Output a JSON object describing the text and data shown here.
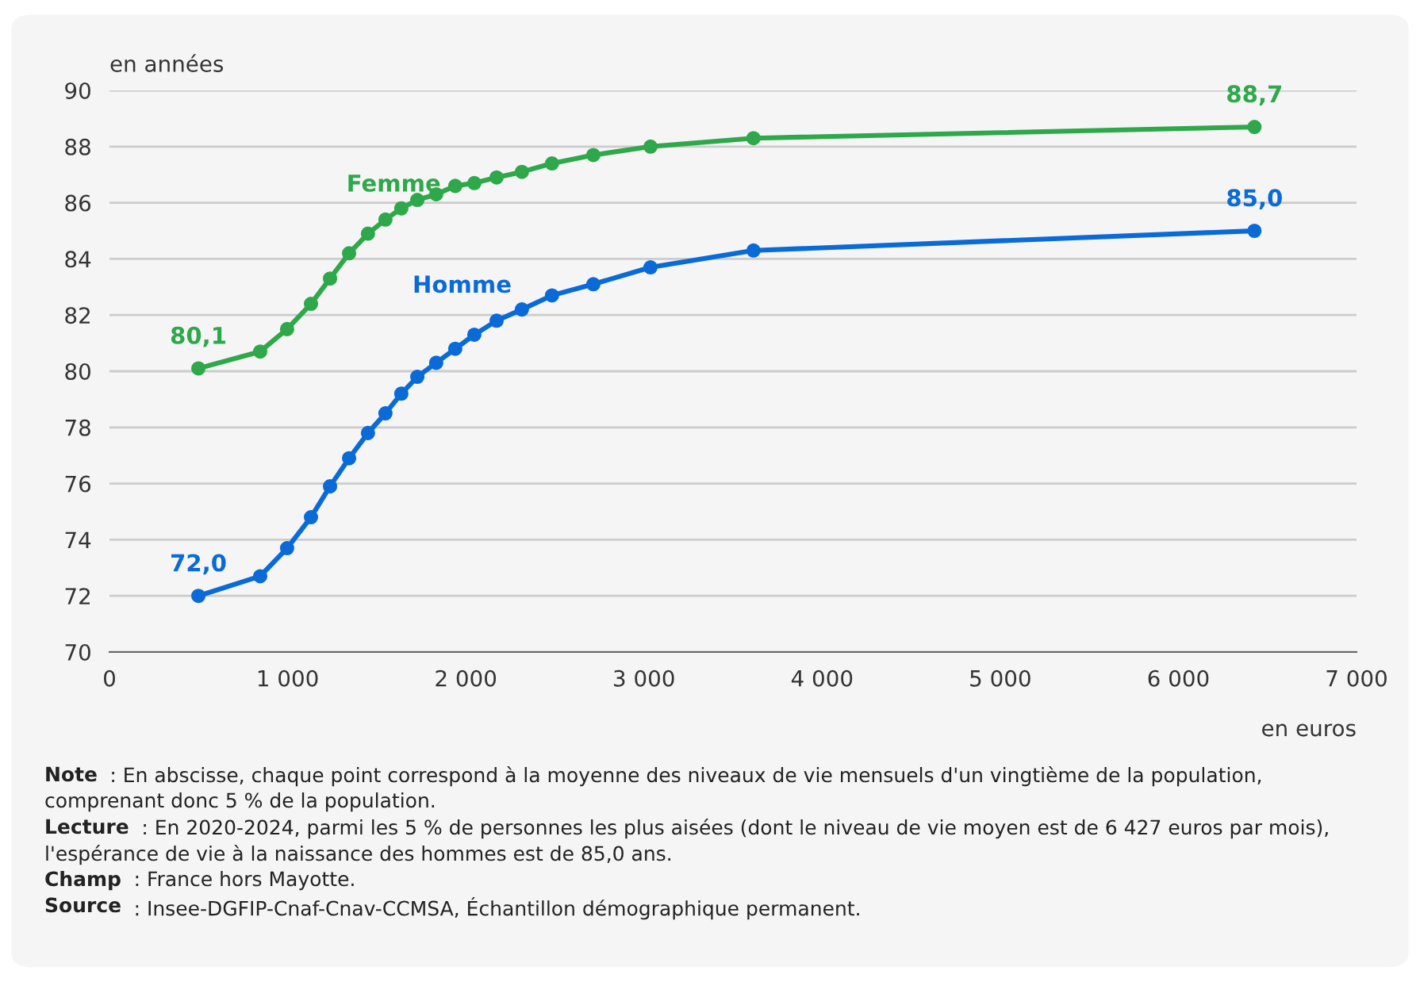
{
  "chart_data": {
    "type": "line",
    "ylabel": "en années",
    "xlabel": "en euros",
    "xlim": [
      0,
      7000
    ],
    "xticks": [
      {
        "value": 0,
        "label": "0"
      },
      {
        "value": 1000,
        "label": "1 000"
      },
      {
        "value": 2000,
        "label": "2 000"
      },
      {
        "value": 3000,
        "label": "3 000"
      },
      {
        "value": 4000,
        "label": "4 000"
      },
      {
        "value": 5000,
        "label": "5 000"
      },
      {
        "value": 6000,
        "label": "6 000"
      },
      {
        "value": 7000,
        "label": "7 000"
      }
    ],
    "ylim": [
      70,
      90
    ],
    "yticks": [
      70,
      72,
      74,
      76,
      78,
      80,
      82,
      84,
      86,
      88,
      90
    ],
    "grid": "y",
    "marker": "circle",
    "line_style": "solid",
    "legend": false,
    "series": [
      {
        "name": "Femme",
        "color": "#2ea84a",
        "x": [
          499,
          846,
          997,
          1131,
          1238,
          1345,
          1451,
          1549,
          1638,
          1728,
          1834,
          1941,
          2048,
          2173,
          2315,
          2484,
          2716,
          3037,
          3615,
          6427
        ],
        "values": [
          80.1,
          80.7,
          81.5,
          82.4,
          83.3,
          84.2,
          84.9,
          85.4,
          85.8,
          86.1,
          86.3,
          86.6,
          86.7,
          86.9,
          87.1,
          87.4,
          87.7,
          88.0,
          88.3,
          88.7
        ],
        "value_labels": [
          "80,1",
          null,
          null,
          null,
          null,
          null,
          null,
          null,
          null,
          null,
          null,
          null,
          null,
          null,
          null,
          null,
          null,
          null,
          null,
          "88,7"
        ]
      },
      {
        "name": "Homme",
        "color": "#0a6ad8",
        "x": [
          499,
          846,
          997,
          1131,
          1238,
          1345,
          1451,
          1549,
          1638,
          1728,
          1834,
          1941,
          2048,
          2173,
          2315,
          2484,
          2716,
          3037,
          3615,
          6427
        ],
        "values": [
          72.0,
          72.7,
          73.7,
          74.8,
          75.9,
          76.9,
          77.8,
          78.5,
          79.2,
          79.8,
          80.3,
          80.8,
          81.3,
          81.8,
          82.2,
          82.7,
          83.1,
          83.7,
          84.3,
          85.0
        ],
        "value_labels": [
          "72,0",
          null,
          null,
          null,
          null,
          null,
          null,
          null,
          null,
          null,
          null,
          null,
          null,
          null,
          null,
          null,
          null,
          null,
          null,
          "85,0"
        ]
      }
    ],
    "annotations": [
      "Note : En abscisse, chaque point correspond à la moyenne des niveaux de vie mensuels d'un vingtième de la population, comprenant donc 5 % de la population.",
      "Lecture : En 2020-2024, parmi les 5 % de personnes les plus aisées (dont le niveau de vie moyen est de 6 427 euros par mois), l'espérance de vie à la naissance des hommes est de 85,0 ans.",
      "Champ : France hors Mayotte.",
      "Source : Insee-DGFIP-Cnaf-Cnav-CCMSA, Échantillon démographique permanent."
    ]
  }
}
